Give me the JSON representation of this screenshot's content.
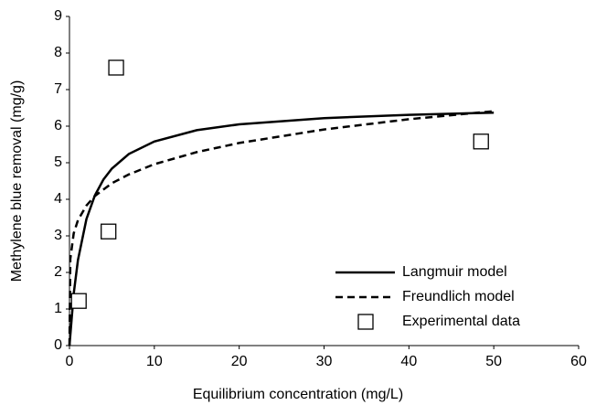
{
  "chart_data": {
    "type": "line",
    "x_label": "Equilibrium concentration (mg/L)",
    "y_label": "Methylene blue removal (mg/g)",
    "xlim": [
      0,
      60
    ],
    "xticks": [
      0,
      10,
      20,
      30,
      40,
      50,
      60
    ],
    "ylim": [
      0,
      9
    ],
    "yticks": [
      0,
      1,
      2,
      3,
      4,
      5,
      6,
      7,
      8,
      9
    ],
    "grid": false,
    "legend": "bottom-right",
    "series": [
      {
        "name": "Langmuir model",
        "color": "#000000",
        "style": "solid",
        "x": [
          0,
          0.5,
          1,
          2,
          3,
          4,
          5,
          7,
          10,
          15,
          20,
          30,
          40,
          50
        ],
        "values": [
          0,
          1.42,
          2.34,
          3.46,
          4.11,
          4.54,
          4.84,
          5.24,
          5.58,
          5.89,
          6.05,
          6.22,
          6.31,
          6.37
        ]
      },
      {
        "name": "Freundlich model",
        "color": "#000000",
        "style": "dashed",
        "x": [
          0,
          0.1,
          0.5,
          1,
          2,
          3,
          5,
          7,
          10,
          15,
          20,
          30,
          40,
          50
        ],
        "values": [
          0,
          2.37,
          3.07,
          3.43,
          3.83,
          4.09,
          4.44,
          4.68,
          4.96,
          5.29,
          5.54,
          5.91,
          6.19,
          6.41
        ]
      },
      {
        "name": "Experimental data",
        "color": "#000000",
        "style": "markers",
        "x": [
          1.1,
          4.6,
          5.5,
          48.5
        ],
        "values": [
          1.22,
          3.12,
          7.6,
          5.58
        ]
      }
    ]
  }
}
